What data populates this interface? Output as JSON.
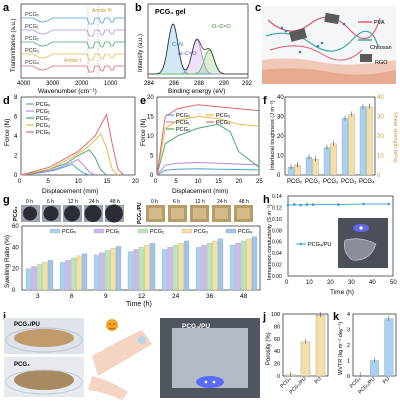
{
  "chart_data": [
    {
      "panel": "a",
      "type": "line",
      "xlabel": "Wavenumber (cm⁻¹)",
      "ylabel": "Transmittance (a.u.)",
      "x_ticks": [
        "4000",
        "3000",
        "2000",
        "1000"
      ],
      "xlim": [
        4000,
        500
      ],
      "series_names": [
        "PCG₀",
        "PCG₁",
        "PCG₂",
        "PCG₃",
        "PCG₄"
      ],
      "series_colors": [
        "#4aa3d8",
        "#b68be0",
        "#4aa86a",
        "#e8b84a",
        "#e06a6a"
      ],
      "annotations": [
        {
          "text": "Amide III",
          "x": 1240
        },
        {
          "text": "Amide I",
          "x": 1650
        }
      ]
    },
    {
      "panel": "b",
      "type": "line",
      "title": "PCG₄ gel",
      "xlabel": "Binding energy (eV)",
      "ylabel": "Intensity (a.u.)",
      "xlim": [
        284,
        292
      ],
      "x_ticks": [
        "284",
        "286",
        "288",
        "290",
        "292"
      ],
      "peaks": [
        {
          "label": "C–N",
          "center": 286.0,
          "color": "#4aa3d8"
        },
        {
          "label": "N–C=O",
          "center": 287.9,
          "color": "#b68be0"
        },
        {
          "label": "O–C=O",
          "center": 288.9,
          "color": "#6abf5a"
        }
      ]
    },
    {
      "panel": "c",
      "type": "diagram",
      "legend": [
        "PVA",
        "Chitosan",
        "RGO"
      ]
    },
    {
      "panel": "d",
      "type": "line",
      "xlabel": "Displacement (mm)",
      "ylabel": "Force (N)",
      "xlim": [
        0,
        20
      ],
      "ylim": [
        0,
        8
      ],
      "x_ticks": [
        "0",
        "5",
        "10",
        "15",
        "20"
      ],
      "y_ticks": [
        "0",
        "2",
        "4",
        "6",
        "8"
      ],
      "series": [
        {
          "name": "PCG₀",
          "color": "#4aa3d8",
          "x": [
            0,
            3,
            6,
            8,
            9,
            10,
            11,
            12
          ],
          "y": [
            0,
            0.2,
            0.5,
            0.9,
            1.1,
            0.6,
            0.2,
            0
          ]
        },
        {
          "name": "PCG₁",
          "color": "#b68be0",
          "x": [
            0,
            4,
            7,
            9,
            10,
            11,
            12,
            13
          ],
          "y": [
            0,
            0.3,
            0.8,
            1.3,
            1.6,
            1.0,
            0.3,
            0
          ]
        },
        {
          "name": "PCG₂",
          "color": "#4aa86a",
          "x": [
            0,
            4,
            8,
            10,
            12,
            13,
            14,
            15
          ],
          "y": [
            0,
            0.4,
            1.2,
            2.0,
            2.6,
            1.8,
            0.5,
            0
          ]
        },
        {
          "name": "PCG₃",
          "color": "#e8b84a",
          "x": [
            0,
            5,
            9,
            12,
            14,
            15,
            16,
            17
          ],
          "y": [
            0,
            0.6,
            1.8,
            3.0,
            4.2,
            2.8,
            0.6,
            0
          ]
        },
        {
          "name": "PCG₄",
          "color": "#e06a6a",
          "x": [
            0,
            5,
            10,
            13,
            15,
            16,
            17,
            18
          ],
          "y": [
            0,
            0.8,
            2.4,
            4.0,
            6.2,
            3.2,
            0.6,
            0
          ]
        }
      ]
    },
    {
      "panel": "e",
      "type": "line",
      "xlabel": "Displacement (mm)",
      "ylabel": "Force (N)",
      "xlim": [
        0,
        25
      ],
      "ylim": [
        0,
        20
      ],
      "x_ticks": [
        "0",
        "5",
        "10",
        "15",
        "20",
        "25"
      ],
      "y_ticks": [
        "0",
        "5",
        "10",
        "15",
        "20"
      ],
      "series": [
        {
          "name": "PCG₀",
          "color": "#4aa3d8",
          "x": [
            0,
            2,
            5,
            10,
            15,
            20,
            25
          ],
          "y": [
            0,
            1.2,
            1.5,
            1.6,
            1.5,
            1.4,
            1.3
          ]
        },
        {
          "name": "PCG₁",
          "color": "#b68be0",
          "x": [
            0,
            2,
            5,
            10,
            15,
            20,
            25
          ],
          "y": [
            0,
            2.5,
            3.0,
            3.2,
            3.0,
            2.8,
            2.6
          ]
        },
        {
          "name": "PCG₂",
          "color": "#4aa86a",
          "x": [
            0,
            2,
            5,
            10,
            15,
            18,
            20,
            25
          ],
          "y": [
            0,
            8,
            10,
            12,
            13,
            11,
            6,
            2
          ]
        },
        {
          "name": "PCG₃",
          "color": "#e8b84a",
          "x": [
            0,
            2,
            5,
            10,
            15,
            20,
            25
          ],
          "y": [
            0,
            12,
            14,
            15,
            14.5,
            13,
            12.5
          ]
        },
        {
          "name": "PCG₄",
          "color": "#e06a6a",
          "x": [
            0,
            2,
            5,
            10,
            15,
            20,
            25
          ],
          "y": [
            0,
            15,
            17,
            18,
            17.5,
            17,
            16.5
          ]
        }
      ]
    },
    {
      "panel": "f",
      "type": "bar",
      "categories": [
        "PCG₀",
        "PCG₁",
        "PCG₂",
        "PCG₃",
        "PCG₄"
      ],
      "ylabel_left": "Interfacial toughness (J m⁻²)",
      "ylabel_right": "Shear strength (kPa)",
      "ylim_left": [
        0,
        40
      ],
      "ylim_right": [
        0,
        40
      ],
      "y_ticks_left": [
        "0",
        "10",
        "20",
        "30",
        "40"
      ],
      "y_ticks_right": [
        "0",
        "10",
        "20",
        "30",
        "40"
      ],
      "series": [
        {
          "name": "Interfacial toughness",
          "color": "#a9d2f0",
          "values": [
            4,
            9,
            14,
            29,
            35
          ]
        },
        {
          "name": "Shear strength",
          "color": "#f3dfa8",
          "values": [
            5,
            8,
            16,
            31,
            35
          ]
        }
      ]
    },
    {
      "panel": "g",
      "type": "bar",
      "xlabel": "Time (h)",
      "ylabel": "Swelling Ratio (%)",
      "ylim": [
        0,
        60
      ],
      "y_ticks": [
        "0",
        "20",
        "40",
        "60"
      ],
      "categories": [
        "3",
        "6",
        "9",
        "12",
        "24",
        "36",
        "48"
      ],
      "photo_labels_left": [
        "0 h",
        "6 h",
        "12 h",
        "24 h",
        "48 h"
      ],
      "photo_labels_right": [
        "0 h",
        "6 h",
        "12 h",
        "24 h",
        "48 h"
      ],
      "photo_row_left": "PCG₄",
      "photo_row_right": "PCG₄/PU",
      "series": [
        {
          "name": "PCG₀",
          "color": "#a9d2f0",
          "values": [
            20,
            26,
            33,
            36,
            38,
            40,
            42
          ]
        },
        {
          "name": "PCG₁",
          "color": "#cdb8ee",
          "values": [
            22,
            28,
            35,
            38,
            40,
            42,
            44
          ]
        },
        {
          "name": "PCG₂",
          "color": "#bde6b8",
          "values": [
            24,
            30,
            37,
            40,
            42,
            44,
            46
          ]
        },
        {
          "name": "PCG₃",
          "color": "#f5e1a0",
          "values": [
            26,
            32,
            39,
            42,
            44,
            46,
            48
          ]
        },
        {
          "name": "PCG₄",
          "color": "#9ec5e8",
          "values": [
            28,
            34,
            41,
            44,
            46,
            48,
            50
          ]
        }
      ]
    },
    {
      "panel": "h",
      "type": "line",
      "xlabel": "Time (h)",
      "ylabel": "Immersion conductivity (S m⁻¹)",
      "xlim": [
        0,
        50
      ],
      "ylim": [
        0,
        0.14
      ],
      "x_ticks": [
        "0",
        "10",
        "20",
        "30",
        "40",
        "50"
      ],
      "y_ticks": [
        "0.00",
        "0.02",
        "0.04",
        "0.06",
        "0.08",
        "0.10",
        "0.12",
        "0.14"
      ],
      "series": [
        {
          "name": "PCG₄/PU",
          "color": "#4aa3d8",
          "x": [
            0,
            3,
            6,
            9,
            12,
            24,
            36,
            48
          ],
          "y": [
            0.124,
            0.125,
            0.124,
            0.125,
            0.125,
            0.125,
            0.126,
            0.126
          ]
        }
      ]
    },
    {
      "panel": "i",
      "type": "photo",
      "labels": [
        "PCG₄/PU",
        "PCG₄",
        "PCG₄/PU"
      ]
    },
    {
      "panel": "j",
      "type": "bar",
      "ylabel": "Porosity (%)",
      "ylim": [
        0,
        100
      ],
      "y_ticks": [
        "0",
        "20",
        "40",
        "60",
        "80",
        "100"
      ],
      "categories": [
        "PCG₄",
        "PCG₄/PU",
        "PU"
      ],
      "values": [
        2,
        55,
        98
      ],
      "color": "#f3dfa8"
    },
    {
      "panel": "k",
      "type": "bar",
      "ylabel": "WVTR (kg m⁻² day⁻¹)",
      "ylim": [
        0,
        4
      ],
      "y_ticks": [
        "0",
        "1",
        "2",
        "3",
        "4"
      ],
      "categories": [
        "PCG₄",
        "PCG₄/PU",
        "PU"
      ],
      "values": [
        0.05,
        1.0,
        3.7
      ],
      "color": "#a9d2f0"
    }
  ],
  "panel_letters": [
    "a",
    "b",
    "c",
    "d",
    "e",
    "f",
    "g",
    "h",
    "i",
    "j",
    "k"
  ]
}
